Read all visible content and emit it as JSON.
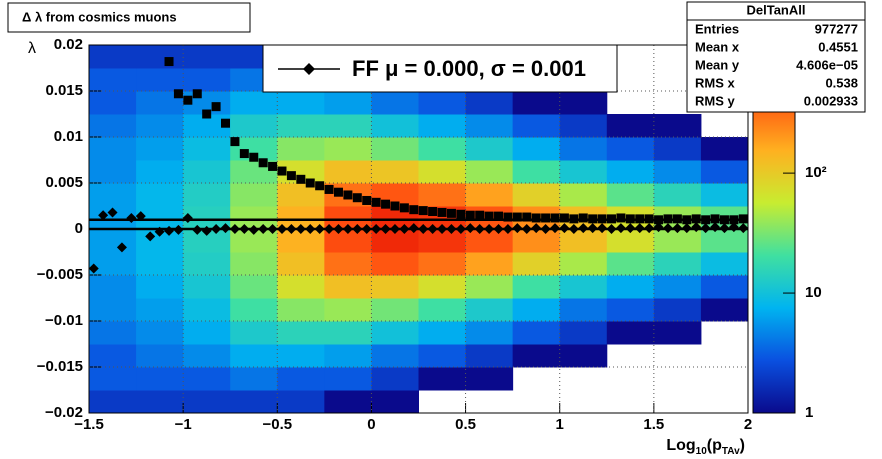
{
  "chart_data": {
    "type": "heatmap",
    "title": "Δ λ from cosmics muons",
    "ylabel": "λ",
    "xlabel": [
      "Log",
      "10",
      "(p",
      "TAv",
      ")"
    ],
    "xlim": [
      -1.5,
      2
    ],
    "ylim": [
      -0.02,
      0.02
    ],
    "zlim": [
      1,
      1170
    ],
    "log_z": true,
    "grid": true,
    "xticks": [
      {
        "value": -1.5,
        "label": "−1.5"
      },
      {
        "value": -1,
        "label": "−1"
      },
      {
        "value": -0.5,
        "label": "−0.5"
      },
      0,
      0.5,
      1,
      1.5,
      2
    ],
    "yticks": [
      {
        "value": -0.02,
        "label": "−0.02"
      },
      {
        "value": -0.015,
        "label": "−0.015"
      },
      {
        "value": -0.01,
        "label": "−0.01"
      },
      {
        "value": -0.005,
        "label": "−0.005"
      },
      0,
      0.005,
      0.01,
      0.015,
      0.02
    ],
    "zticks": [
      1,
      10,
      {
        "value": 100,
        "label": "10²"
      }
    ],
    "colormap": [
      "#0a0a8c",
      "#0a50e0",
      "#00b4f0",
      "#40e0a0",
      "#c8ec30",
      "#ffb020",
      "#ff5010",
      "#e00000"
    ],
    "xbins": [
      -1.5,
      -1.25,
      -1,
      -0.75,
      -0.5,
      -0.25,
      0,
      0.25,
      0.5,
      0.75,
      1,
      1.25,
      1.5,
      1.75,
      2
    ],
    "ybins": [
      -0.02,
      -0.0175,
      -0.015,
      -0.0125,
      -0.01,
      -0.0075,
      -0.005,
      -0.0025,
      0,
      0.0025,
      0.005,
      0.0075,
      0.01,
      0.0125,
      0.015,
      0.0175,
      0.02
    ],
    "z": [
      [
        2,
        2,
        2,
        2,
        2,
        1,
        1,
        0,
        0,
        0,
        0,
        0,
        0,
        0
      ],
      [
        3,
        3,
        3,
        4,
        3,
        3,
        2,
        1,
        1,
        0,
        0,
        0,
        0,
        0
      ],
      [
        3,
        4,
        5,
        7,
        7,
        6,
        4,
        3,
        2,
        1,
        1,
        0,
        0,
        0
      ],
      [
        4,
        5,
        7,
        12,
        15,
        15,
        10,
        7,
        5,
        3,
        2,
        1,
        1,
        0
      ],
      [
        5,
        6,
        9,
        20,
        35,
        40,
        30,
        20,
        12,
        7,
        4,
        3,
        2,
        1
      ],
      [
        5,
        7,
        11,
        28,
        70,
        120,
        110,
        70,
        40,
        20,
        11,
        7,
        5,
        3
      ],
      [
        6,
        8,
        13,
        35,
        120,
        300,
        400,
        300,
        180,
        90,
        45,
        25,
        15,
        9
      ],
      [
        6,
        8,
        14,
        40,
        150,
        450,
        700,
        600,
        400,
        220,
        120,
        70,
        40,
        25
      ],
      [
        6,
        8,
        14,
        40,
        150,
        450,
        700,
        600,
        400,
        220,
        120,
        70,
        40,
        25
      ],
      [
        6,
        8,
        13,
        35,
        120,
        300,
        400,
        300,
        180,
        90,
        45,
        25,
        15,
        9
      ],
      [
        5,
        7,
        11,
        28,
        70,
        120,
        110,
        70,
        40,
        20,
        11,
        7,
        5,
        3
      ],
      [
        5,
        6,
        9,
        20,
        35,
        40,
        30,
        20,
        12,
        7,
        4,
        3,
        2,
        1
      ],
      [
        4,
        5,
        7,
        12,
        15,
        15,
        10,
        7,
        5,
        3,
        2,
        1,
        1,
        0
      ],
      [
        3,
        4,
        5,
        7,
        7,
        6,
        4,
        3,
        2,
        1,
        1,
        0,
        0,
        0
      ],
      [
        3,
        3,
        3,
        4,
        3,
        3,
        2,
        1,
        1,
        0,
        0,
        0,
        0,
        0
      ],
      [
        2,
        2,
        2,
        2,
        2,
        1,
        1,
        0,
        0,
        0,
        0,
        0,
        0,
        0
      ]
    ],
    "x": [
      -1.475,
      -1.425,
      -1.375,
      -1.325,
      -1.275,
      -1.225,
      -1.175,
      -1.125,
      -1.075,
      -1.025,
      -0.975,
      -0.925,
      -0.875,
      -0.825,
      -0.775,
      -0.725,
      -0.675,
      -0.625,
      -0.575,
      -0.525,
      -0.475,
      -0.425,
      -0.375,
      -0.325,
      -0.275,
      -0.225,
      -0.175,
      -0.125,
      -0.075,
      -0.025,
      0.025,
      0.075,
      0.125,
      0.175,
      0.225,
      0.275,
      0.325,
      0.375,
      0.425,
      0.475,
      0.525,
      0.575,
      0.625,
      0.675,
      0.725,
      0.775,
      0.825,
      0.875,
      0.925,
      0.975,
      1.025,
      1.075,
      1.125,
      1.175,
      1.225,
      1.275,
      1.325,
      1.375,
      1.425,
      1.475,
      1.525,
      1.575,
      1.625,
      1.675,
      1.725,
      1.775,
      1.825,
      1.875,
      1.925,
      1.975
    ],
    "series": [
      {
        "marker": "square",
        "color": "#000000",
        "values": [
          null,
          null,
          null,
          null,
          null,
          null,
          null,
          null,
          0.0182,
          0.0147,
          0.014,
          0.0147,
          0.0125,
          0.0133,
          0.0115,
          0.0095,
          0.0082,
          0.0078,
          0.0072,
          0.0068,
          0.0063,
          0.0058,
          0.0054,
          0.005,
          0.0047,
          0.0043,
          0.004,
          0.0037,
          0.0034,
          0.0031,
          0.0029,
          0.0027,
          0.0025,
          0.0023,
          0.0021,
          0.002,
          0.0019,
          0.0018,
          0.0017,
          0.0016,
          0.0015,
          0.0015,
          0.0014,
          0.0014,
          0.0013,
          0.0013,
          0.0013,
          0.0012,
          0.0012,
          0.0012,
          0.0012,
          0.0011,
          0.0012,
          0.0011,
          0.0011,
          0.0011,
          0.0012,
          0.0011,
          0.0011,
          0.0011,
          0.001,
          0.0011,
          0.0011,
          0.001,
          0.0011,
          0.001,
          0.0011,
          0.001,
          0.001,
          0.0011
        ]
      },
      {
        "marker": "diamond",
        "color": "#000000",
        "values": [
          -0.0043,
          0.0015,
          0.0018,
          -0.002,
          0.0012,
          0.0014,
          -0.0008,
          -0.0003,
          -0.0002,
          -0.0001,
          0.0012,
          -0.0001,
          -0.0002,
          0,
          0.0001,
          0,
          0,
          -0.0001,
          0,
          0,
          0,
          0,
          0,
          0,
          0,
          0,
          0,
          0,
          0,
          0,
          0,
          0,
          0,
          0,
          0.0001,
          0,
          0,
          0,
          0,
          0,
          0.0001,
          0,
          0,
          0,
          0,
          0.0001,
          0,
          0.0001,
          0,
          0.0001,
          0.0001,
          0,
          0.0001,
          0.0001,
          0.0001,
          0,
          0.0001,
          0.0001,
          0.0001,
          0.0001,
          0.0002,
          0.0001,
          0.0001,
          0.0001,
          0.0002,
          0.0001,
          0.0002,
          0.0001,
          0.0002,
          0.0001
        ]
      }
    ],
    "hlines": [
      0.001,
      0
    ],
    "legend": {
      "label": "FF μ =  0.000, σ =   0.001"
    },
    "stats": {
      "title": "DelTanAll",
      "rows": [
        [
          "Entries",
          "977277"
        ],
        [
          "Mean x",
          "0.4551"
        ],
        [
          "Mean y",
          "4.606e−05"
        ],
        [
          "RMS x",
          "0.538"
        ],
        [
          "RMS y",
          "0.002933"
        ]
      ]
    }
  }
}
